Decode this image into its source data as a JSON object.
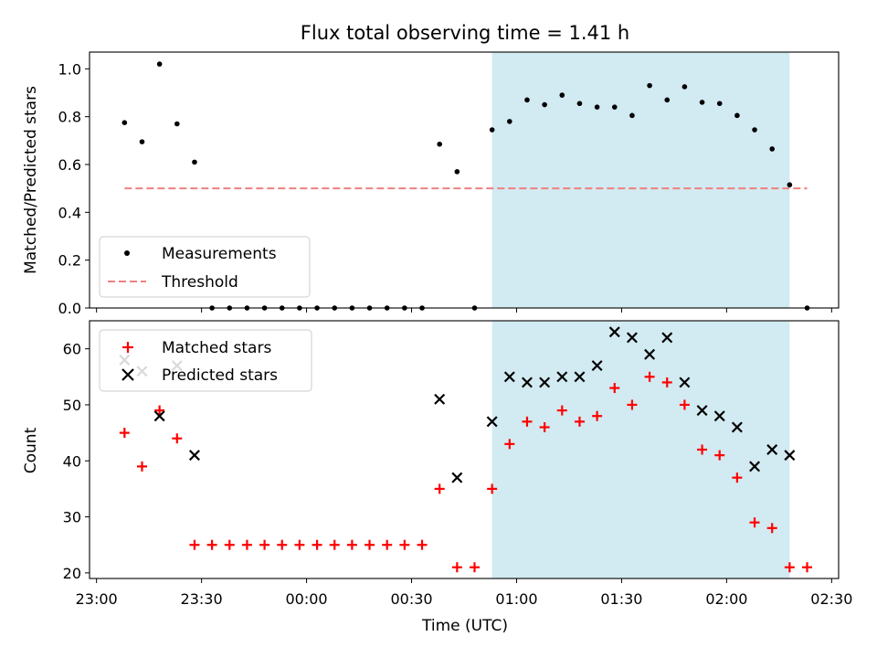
{
  "chart_data": [
    {
      "type": "scatter",
      "title": "Flux total observing time = 1.41 h",
      "xlabel": "",
      "ylabel": "Matched/Predicted stars",
      "xlim": [
        "22:58",
        "02:32"
      ],
      "ylim": [
        0,
        1.07
      ],
      "yticks": [
        0.0,
        0.2,
        0.4,
        0.6,
        0.8,
        1.0
      ],
      "ytick_labels": [
        "0.0",
        "0.2",
        "0.4",
        "0.6",
        "0.8",
        "1.0"
      ],
      "legend_location": "lower-left",
      "highlight_span": [
        "00:53",
        "02:18"
      ],
      "highlight_color": "#add8e6",
      "series": [
        {
          "name": "Measurements",
          "marker": "dot",
          "color": "#000000",
          "x": [
            "23:08",
            "23:13",
            "23:18",
            "23:23",
            "23:28",
            "23:33",
            "23:38",
            "23:43",
            "23:48",
            "23:53",
            "23:58",
            "00:03",
            "00:08",
            "00:13",
            "00:18",
            "00:23",
            "00:28",
            "00:33",
            "00:38",
            "00:43",
            "00:48",
            "00:53",
            "00:58",
            "01:03",
            "01:08",
            "01:13",
            "01:18",
            "01:23",
            "01:28",
            "01:33",
            "01:38",
            "01:43",
            "01:48",
            "01:53",
            "01:58",
            "02:03",
            "02:08",
            "02:13",
            "02:18",
            "02:23"
          ],
          "y": [
            0.775,
            0.695,
            1.02,
            0.77,
            0.61,
            0,
            0,
            0,
            0,
            0,
            0,
            0,
            0,
            0,
            0,
            0,
            0,
            0,
            0.685,
            0.57,
            0,
            0.745,
            0.78,
            0.87,
            0.85,
            0.89,
            0.855,
            0.84,
            0.84,
            0.805,
            0.93,
            0.87,
            0.925,
            0.86,
            0.855,
            0.805,
            0.745,
            0.665,
            0.515,
            0
          ]
        },
        {
          "name": "Threshold",
          "marker": "dashed-line",
          "color": "#f08080",
          "x": [
            "23:08",
            "02:23"
          ],
          "y": [
            0.5,
            0.5
          ]
        }
      ]
    },
    {
      "type": "scatter",
      "title": "",
      "xlabel": "Time (UTC)",
      "ylabel": "Count",
      "xlim": [
        "22:58",
        "02:32"
      ],
      "ylim": [
        19,
        65
      ],
      "yticks": [
        20,
        30,
        40,
        50,
        60
      ],
      "ytick_labels": [
        "20",
        "30",
        "40",
        "50",
        "60"
      ],
      "xticks": [
        "23:00",
        "23:30",
        "00:00",
        "00:30",
        "01:00",
        "01:30",
        "02:00",
        "02:30"
      ],
      "legend_location": "upper-left",
      "highlight_span": [
        "00:53",
        "02:18"
      ],
      "highlight_color": "#add8e6",
      "series": [
        {
          "name": "Matched stars",
          "marker": "plus",
          "color": "#ff0000",
          "x": [
            "23:08",
            "23:13",
            "23:18",
            "23:23",
            "23:28",
            "23:33",
            "23:38",
            "23:43",
            "23:48",
            "23:53",
            "23:58",
            "00:03",
            "00:08",
            "00:13",
            "00:18",
            "00:23",
            "00:28",
            "00:33",
            "00:38",
            "00:43",
            "00:48",
            "00:53",
            "00:58",
            "01:03",
            "01:08",
            "01:13",
            "01:18",
            "01:23",
            "01:28",
            "01:33",
            "01:38",
            "01:43",
            "01:48",
            "01:53",
            "01:58",
            "02:03",
            "02:08",
            "02:13",
            "02:18",
            "02:23"
          ],
          "y": [
            45,
            39,
            49,
            44,
            25,
            25,
            25,
            25,
            25,
            25,
            25,
            25,
            25,
            25,
            25,
            25,
            25,
            25,
            35,
            21,
            21,
            35,
            43,
            47,
            46,
            49,
            47,
            48,
            53,
            50,
            55,
            54,
            50,
            42,
            41,
            37,
            29,
            28,
            21,
            21
          ]
        },
        {
          "name": "Predicted stars",
          "marker": "x",
          "color": "#000000",
          "x": [
            "23:08",
            "23:13",
            "23:18",
            "23:23",
            "23:28",
            "00:38",
            "00:43",
            "00:53",
            "00:58",
            "01:03",
            "01:08",
            "01:13",
            "01:18",
            "01:23",
            "01:28",
            "01:33",
            "01:38",
            "01:43",
            "01:48",
            "01:53",
            "01:58",
            "02:03",
            "02:08",
            "02:13",
            "02:18"
          ],
          "y": [
            58,
            56,
            48,
            57,
            41,
            51,
            37,
            47,
            55,
            54,
            54,
            55,
            55,
            57,
            63,
            62,
            59,
            62,
            54,
            49,
            48,
            46,
            39,
            42,
            41
          ]
        }
      ]
    }
  ]
}
